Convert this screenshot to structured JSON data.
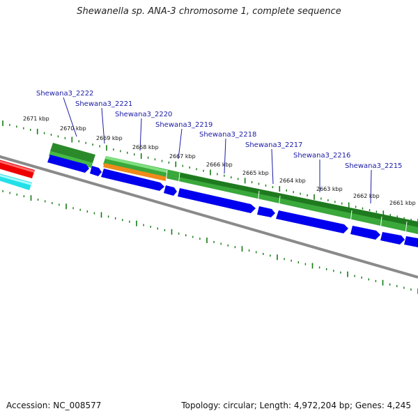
{
  "header": {
    "title": "Shewanella sp. ANA-3 chromosome 1, complete sequence"
  },
  "footer": {
    "accession": "Accession: NC_008577",
    "summary": "Topology: circular; Length: 4,972,204 bp; Genes: 4,245"
  },
  "gene_labels": [
    "Shewana3_2222",
    "Shewana3_2221",
    "Shewana3_2220",
    "Shewana3_2219",
    "Shewana3_2218",
    "Shewana3_2217",
    "Shewana3_2216",
    "Shewana3_2215"
  ],
  "tick_labels": [
    "2671 kbp",
    "2670 kbp",
    "2669 kbp",
    "2668 kbp",
    "2667 kbp",
    "2666 kbp",
    "2665 kbp",
    "2664 kbp",
    "2663 kbp",
    "2662 kbp",
    "2661 kbp"
  ],
  "colors": {
    "backbone": "#8a8a8a",
    "cds_blue": "#0000ee",
    "gene_dark_green": "#1f7a1f",
    "gene_light_green": "#44bb44",
    "feature_orange": "#f08a1a",
    "feature_red": "#ee0000",
    "feature_cyan": "#22e0e8",
    "tick_green": "#127a12",
    "label_blue": "#1a1aa6"
  }
}
